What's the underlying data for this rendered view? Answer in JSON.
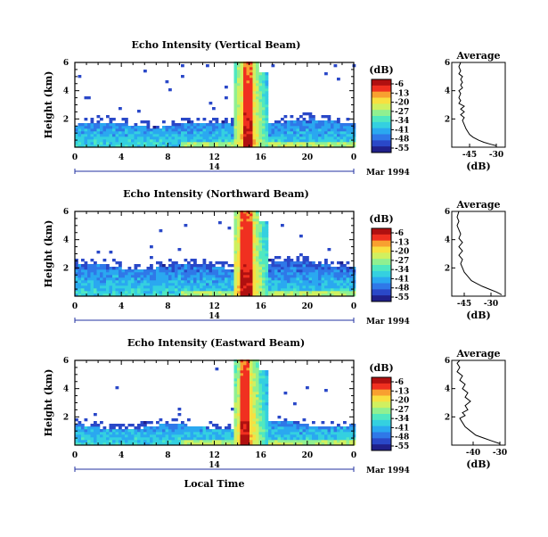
{
  "chart_data": [
    {
      "type": "heatmap",
      "title": "Echo Intensity (Vertical Beam)",
      "ylabel": "Height (km)",
      "yticks": [
        "2",
        "4",
        "6"
      ],
      "ylim": [
        0,
        6
      ],
      "xticks": [
        "0",
        "4",
        "8",
        "12",
        "16",
        "20",
        "0"
      ],
      "xlim": [
        0,
        24
      ],
      "date_tick": "14",
      "date_label": "Mar 1994",
      "colorbar": {
        "label": "(dB)",
        "ticks": [
          "-6",
          "-13",
          "-20",
          "-27",
          "-34",
          "-41",
          "-48",
          "-55"
        ]
      },
      "layer_top_km": 1.5,
      "plume": {
        "start_hr": 13.5,
        "end_hr": 16.4,
        "core_start_hr": 14.3,
        "core_end_hr": 15.2
      },
      "inset": {
        "title": "Average",
        "xlabel": "(dB)",
        "xticks": [
          "-45",
          "-30"
        ],
        "xlim": [
          -55,
          -25
        ],
        "yticks": [
          "2",
          "4",
          "6"
        ],
        "ylim": [
          0,
          6
        ],
        "profile": [
          [
            -30,
            0.1
          ],
          [
            -33,
            0.2
          ],
          [
            -37,
            0.35
          ],
          [
            -40,
            0.5
          ],
          [
            -43,
            0.7
          ],
          [
            -45,
            0.9
          ],
          [
            -46,
            1.1
          ],
          [
            -47,
            1.3
          ],
          [
            -48,
            1.6
          ],
          [
            -49,
            1.9
          ],
          [
            -48,
            2.1
          ],
          [
            -50,
            2.3
          ],
          [
            -48,
            2.5
          ],
          [
            -50,
            2.7
          ],
          [
            -48,
            2.9
          ],
          [
            -51,
            3.1
          ],
          [
            -50,
            3.3
          ],
          [
            -51,
            3.5
          ],
          [
            -50,
            3.8
          ],
          [
            -51,
            4.0
          ],
          [
            -49,
            4.2
          ],
          [
            -50,
            4.4
          ],
          [
            -49,
            4.6
          ],
          [
            -50,
            4.8
          ],
          [
            -49,
            5.0
          ],
          [
            -51,
            5.2
          ],
          [
            -50,
            5.4
          ],
          [
            -51,
            5.7
          ],
          [
            -50,
            6.0
          ]
        ]
      }
    },
    {
      "type": "heatmap",
      "title": "Echo Intensity (Northward Beam)",
      "ylabel": "Height (km)",
      "yticks": [
        "2",
        "4",
        "6"
      ],
      "ylim": [
        0,
        6
      ],
      "xticks": [
        "0",
        "4",
        "8",
        "12",
        "16",
        "20",
        "0"
      ],
      "xlim": [
        0,
        24
      ],
      "date_tick": "14",
      "date_label": "Mar 1994",
      "colorbar": {
        "label": "(dB)",
        "ticks": [
          "-6",
          "-13",
          "-20",
          "-27",
          "-34",
          "-41",
          "-48",
          "-55"
        ]
      },
      "layer_top_km": 2.0,
      "plume": {
        "start_hr": 13.5,
        "end_hr": 16.6,
        "core_start_hr": 14.0,
        "core_end_hr": 15.2
      },
      "inset": {
        "title": "Average",
        "xlabel": "(dB)",
        "xticks": [
          "-45",
          "-30"
        ],
        "xlim": [
          -52,
          -22
        ],
        "yticks": [
          "2",
          "4",
          "6"
        ],
        "ylim": [
          0,
          6
        ],
        "profile": [
          [
            -24,
            0.1
          ],
          [
            -27,
            0.3
          ],
          [
            -31,
            0.5
          ],
          [
            -35,
            0.7
          ],
          [
            -38,
            0.9
          ],
          [
            -41,
            1.1
          ],
          [
            -43,
            1.4
          ],
          [
            -45,
            1.7
          ],
          [
            -46,
            2.0
          ],
          [
            -47,
            2.3
          ],
          [
            -46,
            2.6
          ],
          [
            -48,
            2.9
          ],
          [
            -46,
            3.2
          ],
          [
            -48,
            3.5
          ],
          [
            -46,
            3.8
          ],
          [
            -48,
            4.1
          ],
          [
            -47,
            4.4
          ],
          [
            -48,
            4.7
          ],
          [
            -49,
            5.0
          ],
          [
            -48,
            5.3
          ],
          [
            -49,
            5.6
          ],
          [
            -48,
            6.0
          ]
        ]
      }
    },
    {
      "type": "heatmap",
      "title": "Echo Intensity (Eastward Beam)",
      "ylabel": "Height (km)",
      "yticks": [
        "2",
        "4",
        "6"
      ],
      "ylim": [
        0,
        6
      ],
      "xticks": [
        "0",
        "4",
        "8",
        "12",
        "16",
        "20",
        "0"
      ],
      "xlim": [
        0,
        24
      ],
      "date_tick": "14",
      "date_label": "Mar 1994",
      "xlabel": "Local Time",
      "colorbar": {
        "label": "(dB)",
        "ticks": [
          "-6",
          "-13",
          "-20",
          "-27",
          "-34",
          "-41",
          "-48",
          "-55"
        ]
      },
      "layer_top_km": 1.2,
      "plume": {
        "start_hr": 13.5,
        "end_hr": 16.6,
        "core_start_hr": 14.2,
        "core_end_hr": 15.0
      },
      "inset": {
        "title": "Average",
        "xlabel": "(dB)",
        "xticks": [
          "-40",
          "-30"
        ],
        "xlim": [
          -48,
          -28
        ],
        "yticks": [
          "2",
          "4",
          "6"
        ],
        "ylim": [
          0,
          6
        ],
        "profile": [
          [
            -30,
            0.1
          ],
          [
            -33,
            0.3
          ],
          [
            -36,
            0.5
          ],
          [
            -39,
            0.7
          ],
          [
            -41,
            1.0
          ],
          [
            -43,
            1.3
          ],
          [
            -44,
            1.6
          ],
          [
            -45,
            1.9
          ],
          [
            -43,
            2.1
          ],
          [
            -44,
            2.3
          ],
          [
            -42,
            2.5
          ],
          [
            -43,
            2.8
          ],
          [
            -41,
            3.1
          ],
          [
            -43,
            3.4
          ],
          [
            -42,
            3.7
          ],
          [
            -44,
            4.0
          ],
          [
            -43,
            4.3
          ],
          [
            -45,
            4.6
          ],
          [
            -44,
            4.9
          ],
          [
            -46,
            5.2
          ],
          [
            -45,
            5.5
          ],
          [
            -46,
            5.8
          ],
          [
            -45,
            6.0
          ]
        ]
      }
    }
  ]
}
